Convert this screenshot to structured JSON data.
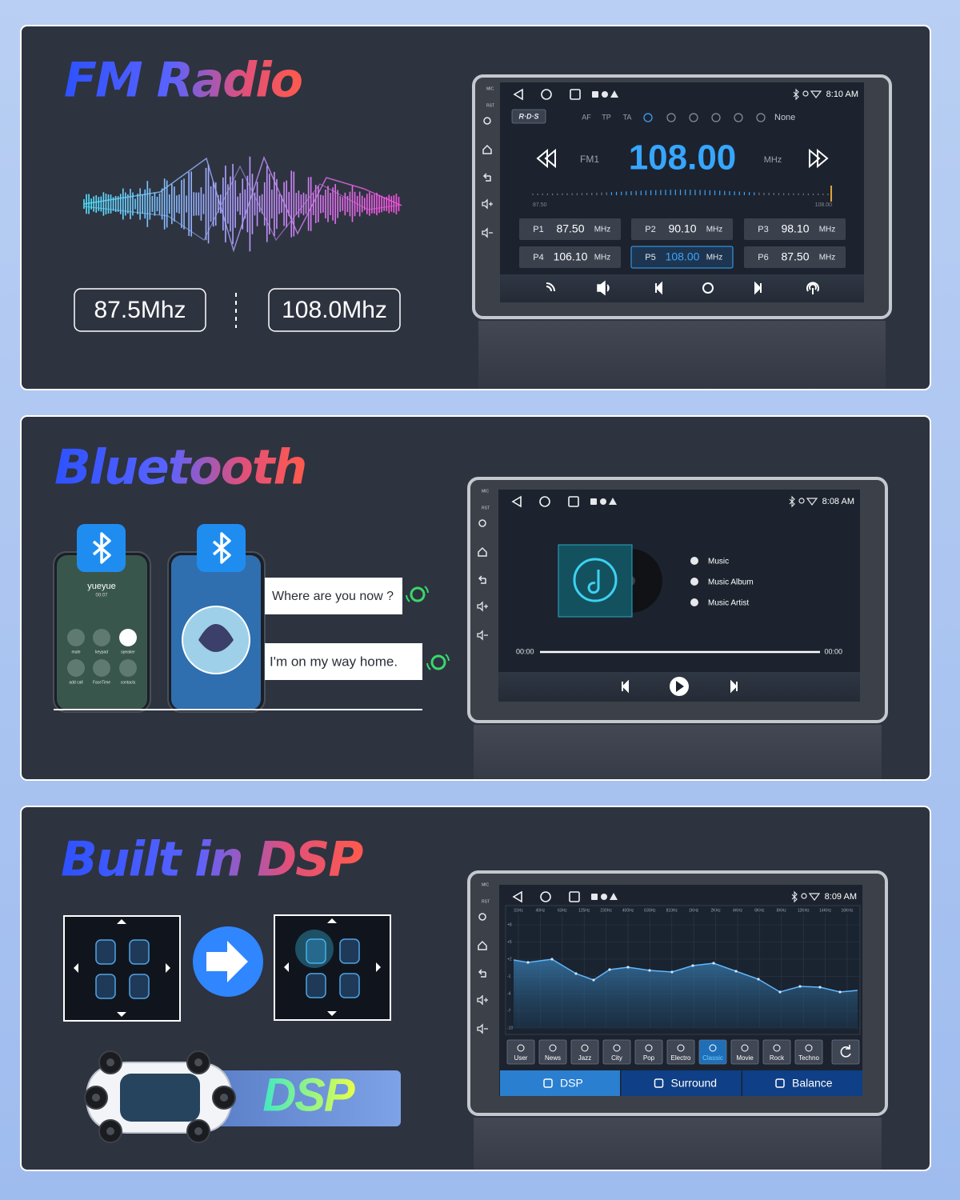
{
  "fm_radio": {
    "title": "FM Radio",
    "range": [
      "87.5Mhz",
      "108.0Mhz"
    ],
    "screen": {
      "time": "8:10 AM",
      "rds": "R·D·S",
      "options": [
        "AF",
        "TP",
        "TA"
      ],
      "mode": "None",
      "band": "FM1",
      "frequency": "108.00",
      "unit": "MHz",
      "scale": [
        "87.50",
        "108.00"
      ],
      "presets": [
        {
          "slot": "P1",
          "frequency": "87.50",
          "unit": "MHz"
        },
        {
          "slot": "P2",
          "frequency": "90.10",
          "unit": "MHz"
        },
        {
          "slot": "P3",
          "frequency": "98.10",
          "unit": "MHz"
        },
        {
          "slot": "P4",
          "frequency": "106.10",
          "unit": "MHz"
        },
        {
          "slot": "P5",
          "frequency": "108.00",
          "unit": "MHz"
        },
        {
          "slot": "P6",
          "frequency": "87.50",
          "unit": "MHz"
        }
      ]
    }
  },
  "bluetooth": {
    "title": "Bluetooth",
    "phone": {
      "caller": "yueyue",
      "duration": "00:07",
      "buttons": [
        "mute",
        "keypad",
        "speaker",
        "add call",
        "FaceTime",
        "contacts"
      ]
    },
    "messages": [
      "Where are you now ?",
      "I'm on my way home."
    ],
    "screen": {
      "time": "8:08 AM",
      "menu": [
        "Music",
        "Music Album",
        "Music Artist"
      ],
      "elapsed": "00:00",
      "remaining": "00:00"
    }
  },
  "dsp": {
    "title": "Built in DSP",
    "badge": "DSP",
    "screen": {
      "time": "8:09 AM",
      "bands": [
        "31Hz",
        "40Hz",
        "63Hz",
        "125Hz",
        "230Hz",
        "400Hz",
        "630Hz",
        "810Hz",
        "1KHz",
        "2KHz",
        "4KHz",
        "6KHz",
        "8KHz",
        "12KHz",
        "14KHz",
        "16KHz"
      ],
      "levels": [
        "+8",
        "+5",
        "+2",
        "-1",
        "-4",
        "-7",
        "-10"
      ],
      "presets": [
        "User",
        "News",
        "Jazz",
        "City",
        "Pop",
        "Electro",
        "Classic",
        "Movie",
        "Rock",
        "Techno"
      ],
      "tabs": [
        "DSP",
        "Surround",
        "Balance"
      ]
    }
  },
  "device": {
    "side_labels": [
      "MIC",
      "RST"
    ]
  }
}
